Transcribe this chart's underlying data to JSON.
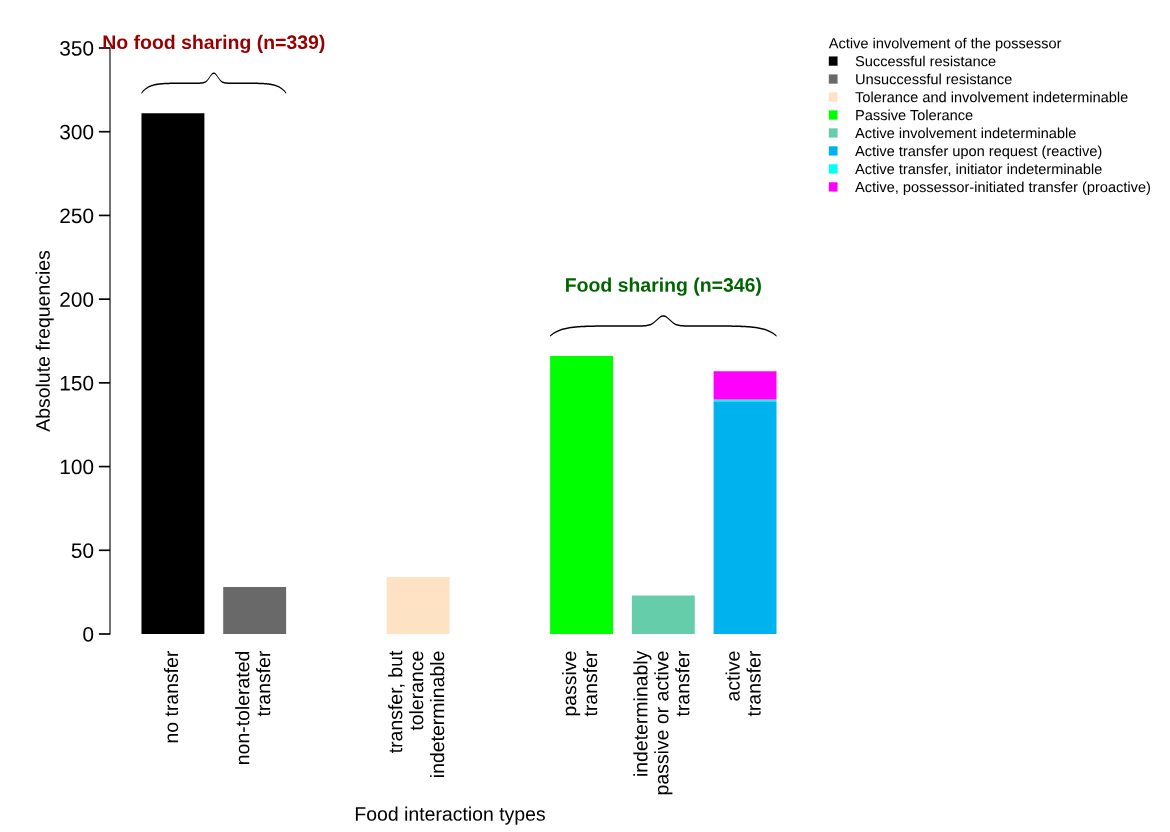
{
  "chart_data": {
    "type": "bar",
    "stacked": true,
    "xlabel": "Food interaction types",
    "ylabel": "Absolute frequencies",
    "categories": [
      "no transfer",
      "non-tolerated\ntransfer",
      null,
      "transfer, but\ntolerance\nindeterminable",
      null,
      "passive\ntransfer",
      "indeterminably\npassive or active\ntransfer",
      "active\ntransfer"
    ],
    "series": [
      {
        "name": "Successful resistance",
        "color": "#000000",
        "values": [
          311,
          null,
          null,
          null,
          null,
          null,
          null,
          null
        ]
      },
      {
        "name": "Unsuccessful resistance",
        "color": "#696969",
        "values": [
          null,
          28,
          null,
          null,
          null,
          null,
          null,
          null
        ]
      },
      {
        "name": "Tolerance and involvement indeterminable",
        "color": "#fde2c4",
        "values": [
          null,
          null,
          null,
          34,
          null,
          null,
          null,
          null
        ]
      },
      {
        "name": "Passive Tolerance",
        "color": "#00ff00",
        "values": [
          null,
          null,
          null,
          null,
          null,
          166,
          null,
          null
        ]
      },
      {
        "name": "Active involvement indeterminable",
        "color": "#66cdaa",
        "values": [
          null,
          null,
          null,
          null,
          null,
          null,
          23,
          null
        ]
      },
      {
        "name": "Active transfer upon request (reactive)",
        "color": "#00b2ee",
        "values": [
          null,
          null,
          null,
          null,
          null,
          null,
          null,
          139
        ]
      },
      {
        "name": "Active transfer, initiator indeterminable",
        "color": "#00ffff",
        "values": [
          null,
          null,
          null,
          null,
          null,
          null,
          null,
          1
        ]
      },
      {
        "name": "Active, possessor-initiated transfer (proactive)",
        "color": "#ff00ff",
        "values": [
          null,
          null,
          null,
          null,
          null,
          null,
          null,
          17
        ]
      }
    ],
    "legend_title": "Active involvement of the possessor",
    "legend": "top right",
    "annotations": [
      "No food sharing (n=339)",
      "Food sharing (n=346)"
    ],
    "ylim": [
      0,
      350
    ],
    "yticks": [
      0,
      50,
      100,
      150,
      200,
      250,
      300,
      350
    ],
    "grid": false
  }
}
